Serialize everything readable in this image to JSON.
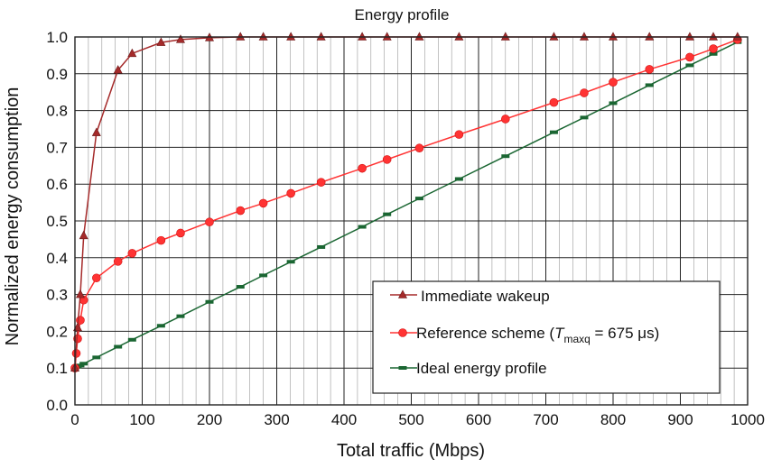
{
  "chart_data": {
    "type": "line",
    "title": "Energy profile",
    "xlabel": "Total traffic (Mbps)",
    "ylabel": "Normalized energy consumption",
    "xlim": [
      0,
      1000
    ],
    "ylim": [
      0,
      1.0
    ],
    "x_ticks": [
      "0",
      "100",
      "200",
      "300",
      "400",
      "500",
      "600",
      "700",
      "800",
      "900",
      "1000"
    ],
    "y_ticks": [
      "0.0",
      "0.1",
      "0.2",
      "0.3",
      "0.4",
      "0.5",
      "0.6",
      "0.7",
      "0.8",
      "0.9",
      "1.0"
    ],
    "grid": true,
    "minor_x_grid_step": 20,
    "legend_position": "bottom-right",
    "series": [
      {
        "name": "Immediate wakeup",
        "color": "#a52a2a",
        "marker": "triangle",
        "x": [
          0,
          4,
          8,
          13,
          32,
          64,
          85,
          128,
          157,
          200,
          246,
          280,
          321,
          366,
          427,
          464,
          512,
          571,
          640,
          712,
          757,
          800,
          854,
          914,
          949,
          985
        ],
        "y": [
          0.1,
          0.21,
          0.3,
          0.46,
          0.74,
          0.91,
          0.955,
          0.985,
          0.993,
          0.998,
          1.0,
          1.0,
          1.0,
          1.0,
          1.0,
          1.0,
          1.0,
          1.0,
          1.0,
          1.0,
          1.0,
          1.0,
          1.0,
          1.0,
          1.0,
          1.0
        ]
      },
      {
        "name": "Reference scheme",
        "legend_main": "Reference scheme (",
        "legend_T": "T",
        "legend_sub": "maxq",
        "legend_tail": " = 675 μs)",
        "color": "#ff3333",
        "marker": "circle",
        "x": [
          0,
          2,
          4,
          8,
          13,
          32,
          64,
          85,
          128,
          157,
          200,
          246,
          280,
          321,
          366,
          427,
          464,
          512,
          571,
          640,
          712,
          757,
          800,
          854,
          914,
          949,
          985
        ],
        "y": [
          0.1,
          0.14,
          0.18,
          0.23,
          0.285,
          0.345,
          0.39,
          0.412,
          0.447,
          0.467,
          0.497,
          0.528,
          0.548,
          0.575,
          0.605,
          0.643,
          0.667,
          0.698,
          0.735,
          0.777,
          0.822,
          0.848,
          0.877,
          0.912,
          0.945,
          0.968,
          0.993
        ]
      },
      {
        "name": "Ideal energy profile",
        "color": "#1a6632",
        "marker": "dash",
        "x": [
          0,
          4,
          8,
          13,
          32,
          64,
          85,
          128,
          157,
          200,
          246,
          280,
          321,
          366,
          427,
          464,
          512,
          571,
          640,
          712,
          757,
          800,
          854,
          914,
          949,
          985
        ],
        "y": [
          0.1,
          0.104,
          0.107,
          0.112,
          0.129,
          0.158,
          0.177,
          0.215,
          0.241,
          0.28,
          0.321,
          0.352,
          0.389,
          0.429,
          0.484,
          0.518,
          0.561,
          0.614,
          0.676,
          0.741,
          0.781,
          0.82,
          0.869,
          0.923,
          0.954,
          0.986
        ]
      }
    ]
  }
}
